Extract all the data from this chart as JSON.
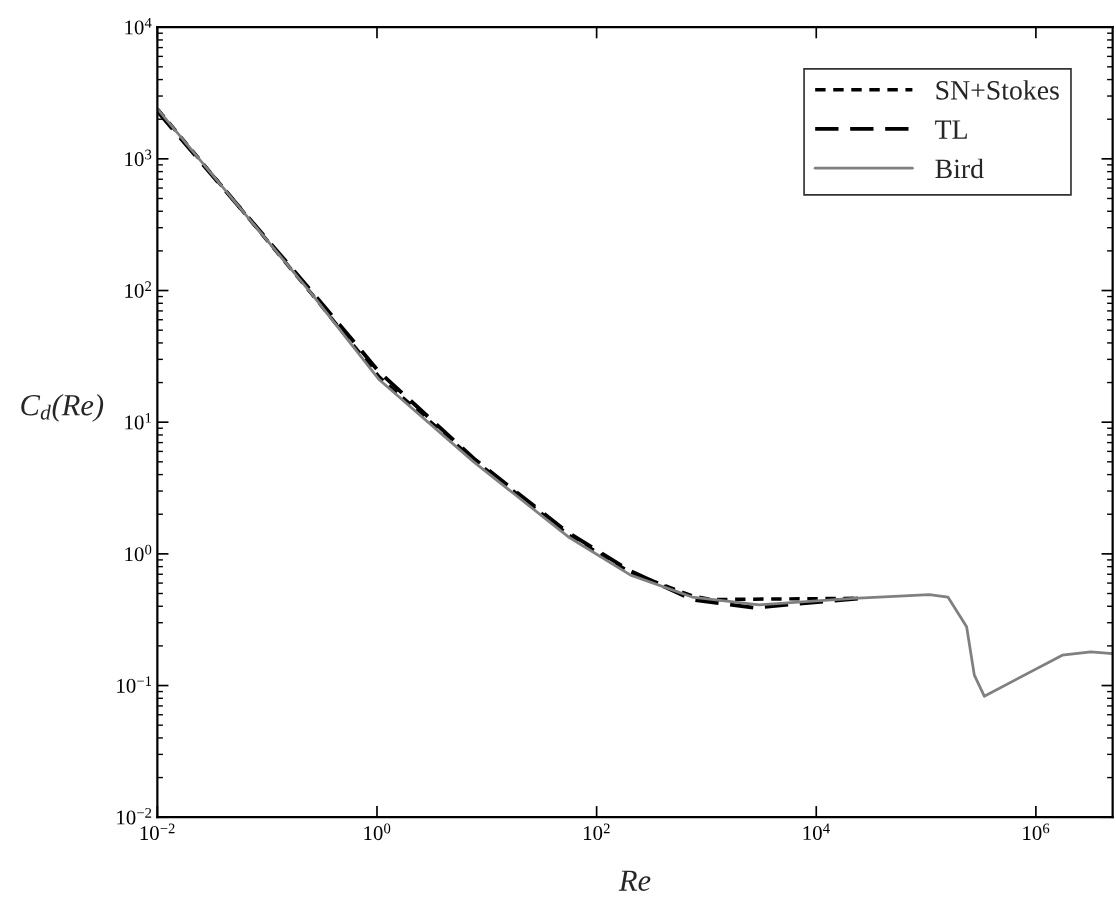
{
  "chart_data": {
    "type": "line",
    "xlabel": "Re",
    "ylabel": "C$_{d}$(Re)",
    "log": "xy",
    "grid": false,
    "legend": "top right",
    "xlim": [
      0.01,
      5000000
    ],
    "ylim": [
      0.01,
      10000
    ],
    "xticks": [
      {
        "value": 0.01,
        "label": "10$^{−2}$"
      },
      {
        "value": 1,
        "label": "10$^{0}$"
      },
      {
        "value": 100,
        "label": "10$^{2}$"
      },
      {
        "value": 10000,
        "label": "10$^{4}$"
      },
      {
        "value": 1000000,
        "label": "10$^{6}$"
      }
    ],
    "yticks": [
      {
        "value": 0.01,
        "label": "10$^{−2}$"
      },
      {
        "value": 0.1,
        "label": "10$^{−1}$"
      },
      {
        "value": 1,
        "label": "10$^{0}$"
      },
      {
        "value": 10,
        "label": "10$^{1}$"
      },
      {
        "value": 100,
        "label": "10$^{2}$"
      },
      {
        "value": 1000,
        "label": "10$^{3}$"
      },
      {
        "value": 10000,
        "label": "10$^{4}$"
      }
    ],
    "series": [
      {
        "name": "SN+Stokes",
        "color": "#000000",
        "line_style": "dotted",
        "x": [
          0.01,
          0.25,
          1.05,
          7.6,
          55,
          204,
          741,
          1100,
          25000
        ],
        "values": [
          2400,
          96,
          22,
          5.2,
          1.4,
          0.72,
          0.48,
          0.45,
          0.46
        ]
      },
      {
        "name": "TL",
        "color": "#000000",
        "line_style": "dashed",
        "x": [
          0.01,
          0.25,
          1.05,
          7.6,
          55,
          204,
          741,
          2700,
          25000
        ],
        "values": [
          2300,
          100,
          24,
          5.3,
          1.45,
          0.74,
          0.45,
          0.39,
          0.46
        ]
      },
      {
        "name": "Bird",
        "color": "#808080",
        "line_style": "solid",
        "x": [
          0.01,
          0.25,
          1.05,
          7.6,
          55,
          204,
          741,
          3020,
          21900,
          107000,
          158000,
          234000,
          275000,
          339000,
          1740000,
          3160000,
          5000000
        ],
        "values": [
          2400,
          96,
          21,
          5.0,
          1.35,
          0.69,
          0.47,
          0.41,
          0.46,
          0.49,
          0.47,
          0.28,
          0.12,
          0.083,
          0.17,
          0.18,
          0.175
        ]
      }
    ]
  }
}
